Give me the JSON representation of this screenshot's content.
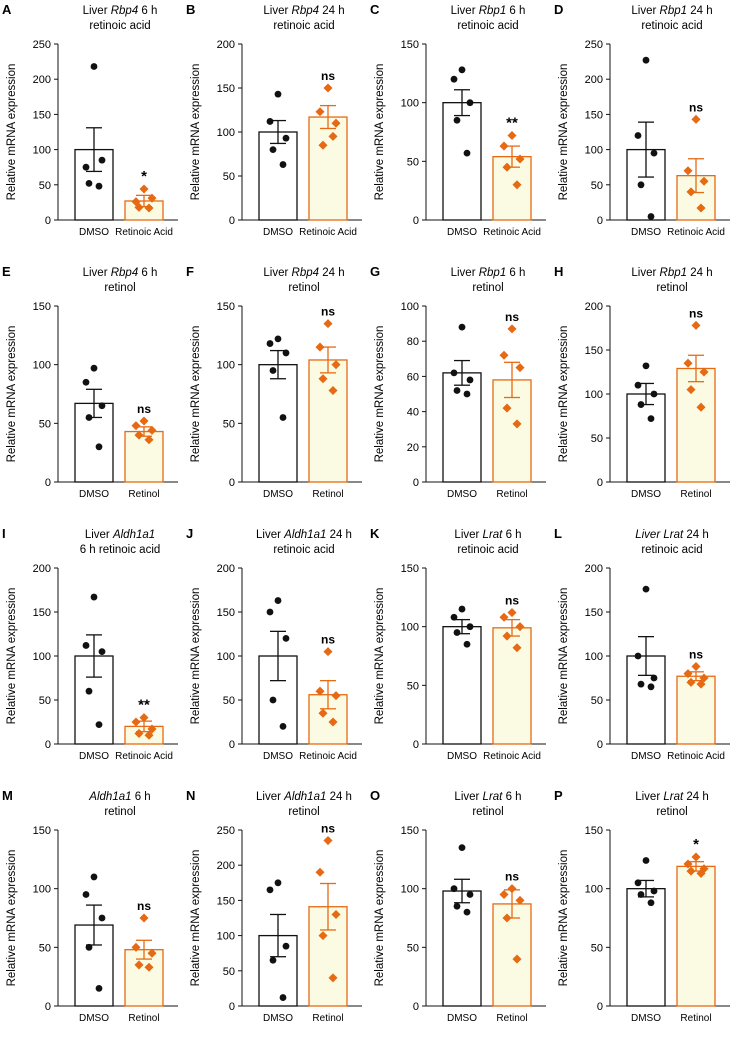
{
  "colors": {
    "control": "#111111",
    "treat": "#e66a14",
    "treat_fill": "#fbfbe3",
    "axis": "#111111"
  },
  "ylabel": "Relative mRNA expression",
  "chart_data": [
    {
      "panel": "A",
      "type": "bar",
      "title_parts": [
        {
          "t": "Liver "
        },
        {
          "t": "Rbp4",
          "i": true
        },
        {
          "t": " 6 h"
        }
      ],
      "title2": "retinoic acid",
      "categories": [
        "DMSO",
        "Retinoic Acid"
      ],
      "ylim": [
        0,
        250
      ],
      "yticks": [
        0,
        50,
        100,
        150,
        200,
        250
      ],
      "values": [
        100,
        27
      ],
      "errors": [
        31,
        8
      ],
      "points": [
        [
          218,
          75,
          85,
          52,
          48
        ],
        [
          44,
          26,
          31,
          18,
          17
        ]
      ],
      "sig": "*"
    },
    {
      "panel": "B",
      "type": "bar",
      "title_parts": [
        {
          "t": "Liver "
        },
        {
          "t": "Rbp4",
          "i": true
        },
        {
          "t": " 24 h"
        }
      ],
      "title2": "retinoic acid",
      "categories": [
        "DMSO",
        "Retinoic Acid"
      ],
      "ylim": [
        0,
        200
      ],
      "yticks": [
        0,
        50,
        100,
        150,
        200
      ],
      "values": [
        100,
        117
      ],
      "errors": [
        13,
        13
      ],
      "points": [
        [
          143,
          112,
          93,
          80,
          63
        ],
        [
          150,
          123,
          110,
          85,
          95
        ]
      ],
      "sig": "ns"
    },
    {
      "panel": "C",
      "type": "bar",
      "title_parts": [
        {
          "t": "Liver "
        },
        {
          "t": "Rbp1",
          "i": true
        },
        {
          "t": " 6 h"
        }
      ],
      "title2": "retinoic acid",
      "categories": [
        "DMSO",
        "Retinoic Acid"
      ],
      "ylim": [
        0,
        150
      ],
      "yticks": [
        0,
        50,
        100,
        150
      ],
      "values": [
        100,
        54
      ],
      "errors": [
        11,
        9
      ],
      "points": [
        [
          128,
          120,
          100,
          85,
          57
        ],
        [
          72,
          63,
          52,
          45,
          30
        ]
      ],
      "sig": "**"
    },
    {
      "panel": "D",
      "type": "bar",
      "title_parts": [
        {
          "t": "Liver "
        },
        {
          "t": "Rbp1",
          "i": true
        },
        {
          "t": " 24 h"
        }
      ],
      "title2": "retinoic acid",
      "categories": [
        "DMSO",
        "Retinoic Acid"
      ],
      "ylim": [
        0,
        250
      ],
      "yticks": [
        0,
        50,
        100,
        150,
        200,
        250
      ],
      "values": [
        100,
        63
      ],
      "errors": [
        39,
        24
      ],
      "points": [
        [
          227,
          120,
          95,
          50,
          5
        ],
        [
          143,
          70,
          55,
          40,
          17
        ]
      ],
      "sig": "ns"
    },
    {
      "panel": "E",
      "type": "bar",
      "title_parts": [
        {
          "t": "Liver "
        },
        {
          "t": "Rbp4",
          "i": true
        },
        {
          "t": " 6 h"
        }
      ],
      "title2": "retinol",
      "categories": [
        "DMSO",
        "Retinol"
      ],
      "ylim": [
        0,
        150
      ],
      "yticks": [
        0,
        50,
        100,
        150
      ],
      "values": [
        67,
        43
      ],
      "errors": [
        12,
        4
      ],
      "points": [
        [
          97,
          85,
          65,
          55,
          30
        ],
        [
          52,
          48,
          44,
          40,
          36
        ]
      ],
      "sig": "ns"
    },
    {
      "panel": "F",
      "type": "bar",
      "title_parts": [
        {
          "t": "Liver "
        },
        {
          "t": "Rbp4",
          "i": true
        },
        {
          "t": " 24 h"
        }
      ],
      "title2": "retinol",
      "categories": [
        "DMSO",
        "Retinol"
      ],
      "ylim": [
        0,
        150
      ],
      "yticks": [
        0,
        50,
        100,
        150
      ],
      "values": [
        100,
        104
      ],
      "errors": [
        12,
        11
      ],
      "points": [
        [
          122,
          118,
          110,
          95,
          55
        ],
        [
          135,
          115,
          100,
          88,
          78
        ]
      ],
      "sig": "ns"
    },
    {
      "panel": "G",
      "type": "bar",
      "title_parts": [
        {
          "t": "Liver "
        },
        {
          "t": "Rbp1",
          "i": true
        },
        {
          "t": " 6 h"
        }
      ],
      "title2": "retinol",
      "categories": [
        "DMSO",
        "Retinol"
      ],
      "ylim": [
        0,
        100
      ],
      "yticks": [
        0,
        20,
        40,
        60,
        80,
        100
      ],
      "values": [
        62,
        58
      ],
      "errors": [
        7,
        10
      ],
      "points": [
        [
          88,
          62,
          58,
          52,
          50
        ],
        [
          87,
          72,
          65,
          42,
          33
        ]
      ],
      "sig": "ns"
    },
    {
      "panel": "H",
      "type": "bar",
      "title_parts": [
        {
          "t": "Liver "
        },
        {
          "t": "Rbp1",
          "i": true
        },
        {
          "t": " 24 h"
        }
      ],
      "title2": "retinol",
      "categories": [
        "DMSO",
        "Retinol"
      ],
      "ylim": [
        0,
        200
      ],
      "yticks": [
        0,
        50,
        100,
        150,
        200
      ],
      "values": [
        100,
        129
      ],
      "errors": [
        12,
        15
      ],
      "points": [
        [
          132,
          110,
          100,
          88,
          72
        ],
        [
          178,
          135,
          125,
          105,
          85
        ]
      ],
      "sig": "ns"
    },
    {
      "panel": "I",
      "type": "bar",
      "title_parts": [
        {
          "t": "Liver "
        },
        {
          "t": "Aldh1a1",
          "i": true
        }
      ],
      "title2": "6 h retinoic acid",
      "categories": [
        "DMSO",
        "Retinoic Acid"
      ],
      "ylim": [
        0,
        200
      ],
      "yticks": [
        0,
        50,
        100,
        150,
        200
      ],
      "values": [
        100,
        20
      ],
      "errors": [
        24,
        6
      ],
      "points": [
        [
          167,
          112,
          105,
          60,
          22
        ],
        [
          30,
          25,
          17,
          12,
          10
        ]
      ],
      "sig": "**"
    },
    {
      "panel": "J",
      "type": "bar",
      "title_parts": [
        {
          "t": "Liver "
        },
        {
          "t": "Aldh1a1",
          "i": true
        },
        {
          "t": " 24 h"
        }
      ],
      "title2": "retinoic acid",
      "categories": [
        "DMSO",
        "Retinoic Acid"
      ],
      "ylim": [
        0,
        200
      ],
      "yticks": [
        0,
        50,
        100,
        150,
        200
      ],
      "values": [
        100,
        56
      ],
      "errors": [
        28,
        16
      ],
      "points": [
        [
          163,
          150,
          120,
          50,
          20
        ],
        [
          105,
          60,
          55,
          35,
          25
        ]
      ],
      "sig": "ns"
    },
    {
      "panel": "K",
      "type": "bar",
      "title_parts": [
        {
          "t": "Liver "
        },
        {
          "t": "Lrat",
          "i": true
        },
        {
          "t": " 6 h"
        }
      ],
      "title2": "retinoic acid",
      "categories": [
        "DMSO",
        "Retinoic Acid"
      ],
      "ylim": [
        0,
        150
      ],
      "yticks": [
        0,
        50,
        100,
        150
      ],
      "values": [
        100,
        99
      ],
      "errors": [
        6,
        7
      ],
      "points": [
        [
          115,
          108,
          100,
          95,
          85
        ],
        [
          112,
          108,
          100,
          92,
          82
        ]
      ],
      "sig": "ns"
    },
    {
      "panel": "L",
      "type": "bar",
      "title_parts": [
        {
          "t": "Liver Lrat",
          "i": true
        },
        {
          "t": " 24 h"
        }
      ],
      "title2": "retinoic acid",
      "categories": [
        "DMSO",
        "Retinoic Acid"
      ],
      "ylim": [
        0,
        200
      ],
      "yticks": [
        0,
        50,
        100,
        150,
        200
      ],
      "values": [
        100,
        77
      ],
      "errors": [
        22,
        5
      ],
      "points": [
        [
          176,
          100,
          75,
          68,
          65
        ],
        [
          88,
          80,
          75,
          70,
          68
        ]
      ],
      "sig": "ns"
    },
    {
      "panel": "M",
      "type": "bar",
      "title_parts": [
        {
          "t": "Aldh1a1",
          "i": true
        },
        {
          "t": " 6 h"
        }
      ],
      "title2": "retinol",
      "categories": [
        "DMSO",
        "Retinol"
      ],
      "ylim": [
        0,
        150
      ],
      "yticks": [
        0,
        50,
        100,
        150
      ],
      "values": [
        69,
        48
      ],
      "errors": [
        17,
        8
      ],
      "points": [
        [
          110,
          95,
          75,
          50,
          15
        ],
        [
          75,
          50,
          45,
          35,
          33
        ]
      ],
      "sig": "ns"
    },
    {
      "panel": "N",
      "type": "bar",
      "title_parts": [
        {
          "t": "Liver "
        },
        {
          "t": "Aldh1a1",
          "i": true
        },
        {
          "t": " 24 h"
        }
      ],
      "title2": "retinol",
      "categories": [
        "DMSO",
        "Retinol"
      ],
      "ylim": [
        0,
        250
      ],
      "yticks": [
        0,
        50,
        100,
        150,
        200,
        250
      ],
      "values": [
        100,
        141
      ],
      "errors": [
        30,
        33
      ],
      "points": [
        [
          175,
          165,
          85,
          65,
          12
        ],
        [
          235,
          190,
          130,
          100,
          40
        ]
      ],
      "sig": "ns"
    },
    {
      "panel": "O",
      "type": "bar",
      "title_parts": [
        {
          "t": "Liver "
        },
        {
          "t": "Lrat",
          "i": true
        },
        {
          "t": " 6 h"
        }
      ],
      "title2": "retinol",
      "categories": [
        "DMSO",
        "Retinol"
      ],
      "ylim": [
        0,
        150
      ],
      "yticks": [
        0,
        50,
        100,
        150
      ],
      "values": [
        98,
        87
      ],
      "errors": [
        10,
        12
      ],
      "points": [
        [
          135,
          100,
          95,
          85,
          80
        ],
        [
          100,
          95,
          90,
          75,
          40
        ]
      ],
      "sig": "ns"
    },
    {
      "panel": "P",
      "type": "bar",
      "title_parts": [
        {
          "t": "Liver "
        },
        {
          "t": "Lrat",
          "i": true
        },
        {
          "t": " 24 h"
        }
      ],
      "title2": "retinol",
      "categories": [
        "DMSO",
        "Retinol"
      ],
      "ylim": [
        0,
        150
      ],
      "yticks": [
        0,
        50,
        100,
        150
      ],
      "values": [
        100,
        119
      ],
      "errors": [
        7,
        4
      ],
      "points": [
        [
          124,
          105,
          98,
          95,
          88
        ],
        [
          127,
          121,
          117,
          115,
          113
        ]
      ],
      "sig": "*"
    }
  ]
}
